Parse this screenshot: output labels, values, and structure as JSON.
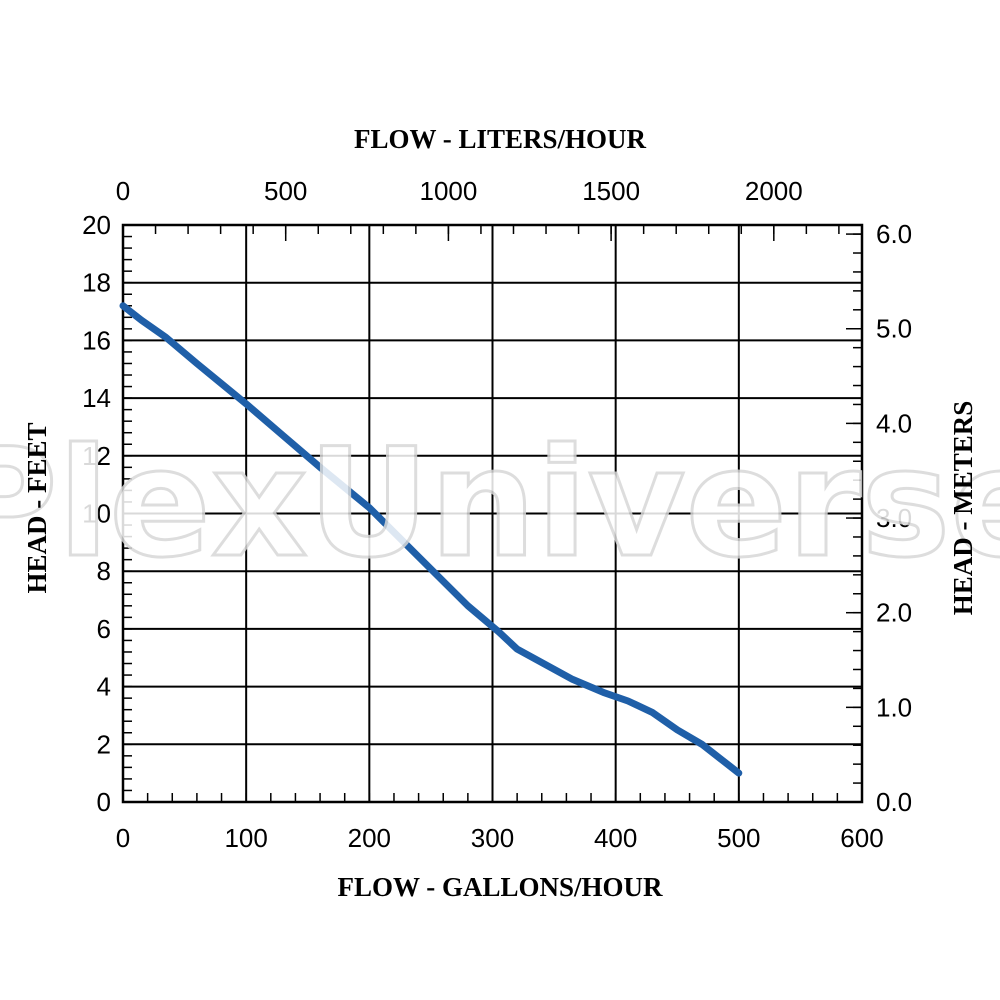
{
  "chart_data": {
    "type": "line",
    "xlabel": "FLOW - GALLONS/HOUR",
    "x2label": "FLOW - LITERS/HOUR",
    "ylabel": "HEAD - FEET",
    "y2label": "HEAD - METERS",
    "xlim": [
      0,
      600
    ],
    "ylim": [
      0,
      20
    ],
    "x2lim": [
      0,
      2271
    ],
    "y2lim": [
      0,
      6.096
    ],
    "x_ticks": [
      0,
      100,
      200,
      300,
      400,
      500,
      600
    ],
    "y_ticks": [
      0,
      2,
      4,
      6,
      8,
      10,
      12,
      14,
      16,
      18,
      20
    ],
    "x2_ticks": [
      0,
      500,
      1000,
      1500,
      2000
    ],
    "x2_tick_labels": [
      "0",
      "500",
      "1000",
      "1500",
      "2000"
    ],
    "y2_ticks": [
      0,
      1,
      2,
      3,
      4,
      5,
      6
    ],
    "y2_tick_labels": [
      "0.0",
      "1.0",
      "2.0",
      "3.0",
      "4.0",
      "5.0",
      "6.0"
    ],
    "grid": true,
    "series": [
      {
        "color": "#1f5fa8",
        "x": [
          0,
          15,
          35,
          60,
          100,
          130,
          160,
          200,
          240,
          280,
          305,
          320,
          335,
          350,
          365,
          390,
          410,
          430,
          450,
          470,
          485,
          500
        ],
        "y": [
          17.2,
          16.7,
          16.1,
          15.2,
          13.8,
          12.7,
          11.6,
          10.2,
          8.5,
          6.8,
          5.9,
          5.3,
          4.95,
          4.6,
          4.25,
          3.8,
          3.5,
          3.1,
          2.5,
          2.0,
          1.5,
          1.0
        ]
      }
    ]
  },
  "watermark": "PlexUniverse"
}
